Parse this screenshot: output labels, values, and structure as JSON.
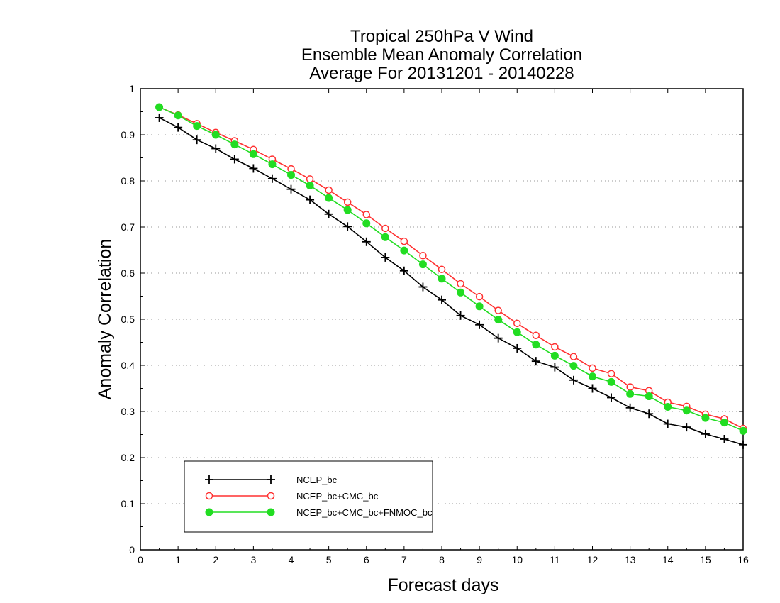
{
  "chart_data": {
    "type": "line",
    "title": [
      "Tropical 250hPa V Wind",
      "Ensemble Mean Anomaly Correlation",
      "Average For 20131201 - 20140228"
    ],
    "xlabel": "Forecast days",
    "ylabel": "Anomaly Correlation",
    "xlim": [
      0,
      16
    ],
    "ylim": [
      0,
      1
    ],
    "xticks": [
      0,
      1,
      2,
      3,
      4,
      5,
      6,
      7,
      8,
      9,
      10,
      11,
      12,
      13,
      14,
      15,
      16
    ],
    "yticks": [
      0,
      0.1,
      0.2,
      0.3,
      0.4,
      0.5,
      0.6,
      0.7,
      0.8,
      0.9,
      1
    ],
    "grid": "horizontal dotted",
    "legend_position": "bottom-left",
    "x": [
      0.5,
      1,
      1.5,
      2,
      2.5,
      3,
      3.5,
      4,
      4.5,
      5,
      5.5,
      6,
      6.5,
      7,
      7.5,
      8,
      8.5,
      9,
      9.5,
      10,
      10.5,
      11,
      11.5,
      12,
      12.5,
      13,
      13.5,
      14,
      14.5,
      15,
      15.5,
      16
    ],
    "series": [
      {
        "name": "NCEP_bc",
        "color": "#000000",
        "marker": "plus",
        "values": [
          0.937,
          0.916,
          0.889,
          0.87,
          0.847,
          0.827,
          0.805,
          0.782,
          0.759,
          0.728,
          0.701,
          0.668,
          0.634,
          0.605,
          0.57,
          0.542,
          0.508,
          0.488,
          0.459,
          0.437,
          0.409,
          0.396,
          0.368,
          0.35,
          0.33,
          0.308,
          0.295,
          0.273,
          0.266,
          0.251,
          0.24,
          0.228
        ]
      },
      {
        "name": "NCEP_bc+CMC_bc",
        "color": "#ff3030",
        "marker": "open-circle",
        "values": [
          0.96,
          0.943,
          0.924,
          0.905,
          0.887,
          0.868,
          0.847,
          0.826,
          0.804,
          0.78,
          0.754,
          0.727,
          0.697,
          0.669,
          0.638,
          0.608,
          0.577,
          0.549,
          0.519,
          0.491,
          0.465,
          0.44,
          0.419,
          0.394,
          0.382,
          0.353,
          0.345,
          0.32,
          0.311,
          0.294,
          0.284,
          0.263
        ]
      },
      {
        "name": "NCEP_bc+CMC_bc+FNMOC_bc",
        "color": "#22dd22",
        "marker": "filled-circle",
        "values": [
          0.96,
          0.942,
          0.919,
          0.9,
          0.879,
          0.858,
          0.836,
          0.813,
          0.79,
          0.763,
          0.737,
          0.708,
          0.678,
          0.649,
          0.619,
          0.588,
          0.558,
          0.528,
          0.499,
          0.472,
          0.445,
          0.421,
          0.399,
          0.376,
          0.364,
          0.338,
          0.333,
          0.31,
          0.302,
          0.286,
          0.276,
          0.258
        ]
      }
    ]
  }
}
